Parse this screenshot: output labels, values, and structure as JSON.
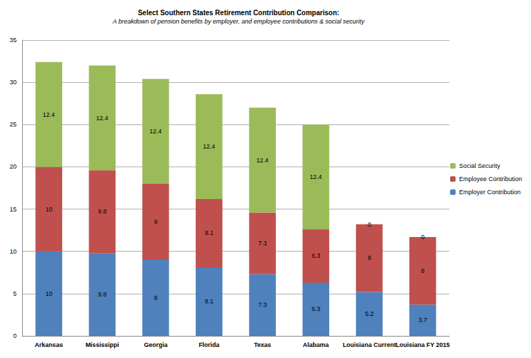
{
  "chart_data": {
    "type": "bar",
    "title": "Select Southern States Retirement Contribution Comparison:",
    "subtitle": "A breakdown of pension benefits by employer, and employee contributions & social security",
    "categories": [
      "Arkansas",
      "Mississippi",
      "Georgia",
      "Florida",
      "Texas",
      "Alabama",
      "Louisiana Current",
      "Louisiana FY 2015"
    ],
    "series": [
      {
        "name": "Employer Contribution",
        "color": "#4f81bd",
        "values": [
          10,
          9.8,
          9,
          8.1,
          7.3,
          6.3,
          5.2,
          3.7
        ]
      },
      {
        "name": "Employee Contribution",
        "color": "#c0504d",
        "values": [
          10,
          9.8,
          9,
          8.1,
          7.3,
          6.3,
          8,
          8
        ]
      },
      {
        "name": "Social Security",
        "color": "#9bbb59",
        "values": [
          12.4,
          12.4,
          12.4,
          12.4,
          12.4,
          12.4,
          0,
          0
        ]
      }
    ],
    "ylim": [
      0,
      35
    ],
    "yticks": [
      0,
      5,
      10,
      15,
      20,
      25,
      30,
      35
    ],
    "grid": true,
    "stacked": true,
    "data_labels": true,
    "legend": "right"
  }
}
